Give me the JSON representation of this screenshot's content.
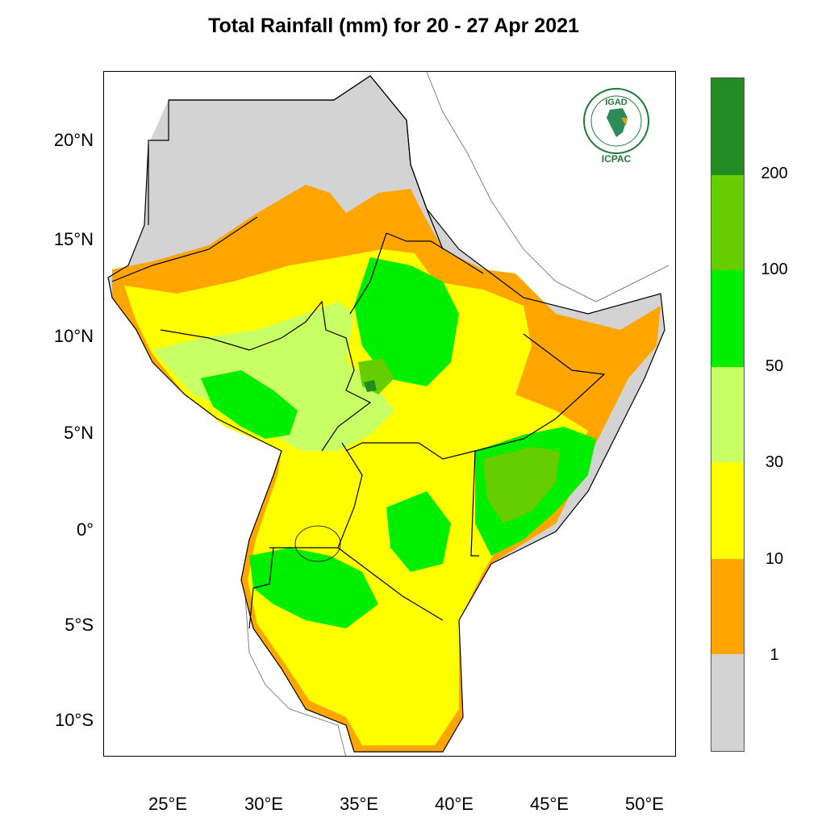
{
  "title": "Total Rainfall (mm) for 20 - 27 Apr 2021",
  "lat_labels": [
    "20°N",
    "15°N",
    "10°N",
    "5°N",
    "0°",
    "5°S",
    "10°S"
  ],
  "lon_labels": [
    "25°E",
    "30°E",
    "35°E",
    "40°E",
    "45°E",
    "50°E"
  ],
  "colorbar": {
    "labels": [
      "200",
      "100",
      "50",
      "30",
      "10",
      "1"
    ],
    "colors": [
      "#228b22",
      "#66cd00",
      "#00ee00",
      "#c8ff64",
      "#ffff00",
      "#ffa500",
      "#d3d3d3"
    ]
  },
  "logo": {
    "top_text": "IGAD",
    "bottom_text": "ICPAC"
  }
}
